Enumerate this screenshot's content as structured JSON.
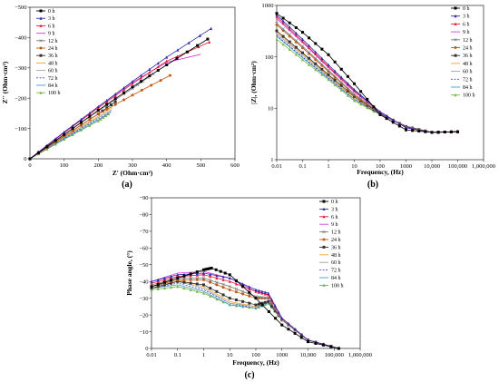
{
  "series_meta": [
    {
      "name": "0 h",
      "color": "#000000",
      "marker": "square",
      "dash": ""
    },
    {
      "name": "3 h",
      "color": "#2a2aa8",
      "marker": "triangle",
      "dash": ""
    },
    {
      "name": "6 h",
      "color": "#e8163c",
      "marker": "triangle",
      "dash": ""
    },
    {
      "name": "9 h",
      "color": "#d63be0",
      "marker": "none",
      "dash": ""
    },
    {
      "name": "12 h",
      "color": "#7a7a7a",
      "marker": "x",
      "dash": ""
    },
    {
      "name": "24 h",
      "color": "#c05a14",
      "marker": "circle",
      "dash": ""
    },
    {
      "name": "36 h",
      "color": "#333333",
      "marker": "square",
      "dash": ""
    },
    {
      "name": "48 h",
      "color": "#f0a030",
      "marker": "none",
      "dash": ""
    },
    {
      "name": "60 h",
      "color": "#9aa2b0",
      "marker": "none",
      "dash": ""
    },
    {
      "name": "72 h",
      "color": "#4a4aa0",
      "marker": "none",
      "dash": "2,1.5"
    },
    {
      "name": "84 h",
      "color": "#3aa0d8",
      "marker": "none",
      "dash": ""
    },
    {
      "name": "100 h",
      "color": "#7ab648",
      "marker": "triangle",
      "dash": ""
    }
  ],
  "chart_data": [
    {
      "type": "line",
      "panel_label": "(a)",
      "xlabel": "Z' (Ohm·cm²)",
      "ylabel": "Z'' (Ohm·cm²)",
      "xlim": [
        0,
        600
      ],
      "ylim": [
        0,
        -500
      ],
      "x_ticks": [
        "0",
        "100",
        "200",
        "300",
        "400",
        "500",
        "600"
      ],
      "y_ticks": [
        "0",
        "−100",
        "−200",
        "−300",
        "−400",
        "−500"
      ],
      "legend_position": "top-left",
      "series": [
        {
          "name": "0 h",
          "x": [
            0,
            100,
            200,
            300,
            400,
            520
          ],
          "y": [
            0,
            -80,
            -160,
            -237,
            -310,
            -395
          ]
        },
        {
          "name": "3 h",
          "x": [
            0,
            100,
            200,
            300,
            400,
            530
          ],
          "y": [
            0,
            -88,
            -172,
            -255,
            -335,
            -430
          ]
        },
        {
          "name": "6 h",
          "x": [
            0,
            100,
            200,
            300,
            400,
            525
          ],
          "y": [
            0,
            -86,
            -168,
            -248,
            -322,
            -385
          ]
        },
        {
          "name": "9 h",
          "x": [
            0,
            100,
            200,
            300,
            400,
            500
          ],
          "y": [
            0,
            -88,
            -172,
            -252,
            -318,
            -345
          ]
        },
        {
          "name": "12 h",
          "x": [
            0,
            100,
            200,
            300,
            360
          ],
          "y": [
            0,
            -80,
            -158,
            -232,
            -280
          ]
        },
        {
          "name": "24 h",
          "x": [
            0,
            100,
            200,
            300,
            410
          ],
          "y": [
            0,
            -75,
            -148,
            -210,
            -275
          ]
        },
        {
          "name": "36 h",
          "x": [
            0,
            100,
            200,
            250
          ],
          "y": [
            0,
            -75,
            -148,
            -188
          ]
        },
        {
          "name": "48 h",
          "x": [
            0,
            100,
            200,
            240
          ],
          "y": [
            0,
            -72,
            -140,
            -168
          ]
        },
        {
          "name": "60 h",
          "x": [
            0,
            100,
            200,
            240
          ],
          "y": [
            0,
            -70,
            -136,
            -162
          ]
        },
        {
          "name": "72 h",
          "x": [
            0,
            100,
            200,
            240
          ],
          "y": [
            0,
            -68,
            -132,
            -158
          ]
        },
        {
          "name": "84 h",
          "x": [
            0,
            100,
            200,
            235
          ],
          "y": [
            0,
            -66,
            -128,
            -152
          ]
        },
        {
          "name": "100 h",
          "x": [
            0,
            100,
            200,
            230
          ],
          "y": [
            0,
            -64,
            -125,
            -148
          ]
        }
      ]
    },
    {
      "type": "line",
      "panel_label": "(b)",
      "xlabel": "Frequency, (Hz)",
      "ylabel": "|Z|, (Ohm·cm²)",
      "x_scale": "log",
      "y_scale": "log",
      "xlim": [
        0.01,
        1000000
      ],
      "ylim": [
        1,
        1000
      ],
      "x_ticks": [
        "0.01",
        "0.1",
        "1",
        "10",
        "100",
        "1000",
        "10,000",
        "100,000",
        "1,000,000"
      ],
      "y_ticks": [
        "1",
        "10",
        "100",
        "1000"
      ],
      "legend_position": "top-right",
      "series": [
        {
          "name": "0 h",
          "x": [
            0.01,
            0.1,
            1,
            10,
            100,
            1000,
            10000,
            100000
          ],
          "y": [
            700,
            300,
            110,
            30,
            7.5,
            3.8,
            3.4,
            3.5
          ]
        },
        {
          "name": "3 h",
          "x": [
            0.01,
            0.1,
            1,
            10,
            100,
            1000,
            10000,
            100000
          ],
          "y": [
            650,
            220,
            70,
            23,
            8.5,
            4.2,
            3.4,
            3.5
          ]
        },
        {
          "name": "6 h",
          "x": [
            0.01,
            0.1,
            1,
            10,
            100,
            1000,
            10000,
            100000
          ],
          "y": [
            600,
            200,
            65,
            22,
            8.5,
            4.2,
            3.4,
            3.5
          ]
        },
        {
          "name": "9 h",
          "x": [
            0.01,
            0.1,
            1,
            10,
            100,
            1000,
            10000,
            100000
          ],
          "y": [
            550,
            190,
            62,
            21,
            8.3,
            4.2,
            3.4,
            3.5
          ]
        },
        {
          "name": "12 h",
          "x": [
            0.01,
            0.1,
            1,
            10,
            100,
            1000,
            10000,
            100000
          ],
          "y": [
            450,
            160,
            55,
            19,
            8.0,
            4.3,
            3.4,
            3.5
          ]
        },
        {
          "name": "24 h",
          "x": [
            0.01,
            0.1,
            1,
            10,
            100,
            1000,
            10000,
            100000
          ],
          "y": [
            420,
            150,
            52,
            18,
            8.0,
            4.3,
            3.4,
            3.5
          ]
        },
        {
          "name": "36 h",
          "x": [
            0.01,
            0.1,
            1,
            10,
            100,
            1000,
            10000,
            100000
          ],
          "y": [
            320,
            120,
            45,
            17,
            7.8,
            4.4,
            3.4,
            3.5
          ]
        },
        {
          "name": "48 h",
          "x": [
            0.01,
            0.1,
            1,
            10,
            100,
            1000,
            10000,
            100000
          ],
          "y": [
            300,
            115,
            43,
            16,
            7.8,
            4.4,
            3.4,
            3.5
          ]
        },
        {
          "name": "60 h",
          "x": [
            0.01,
            0.1,
            1,
            10,
            100,
            1000,
            10000,
            100000
          ],
          "y": [
            280,
            108,
            41,
            16,
            7.7,
            4.4,
            3.4,
            3.5
          ]
        },
        {
          "name": "72 h",
          "x": [
            0.01,
            0.1,
            1,
            10,
            100,
            1000,
            10000,
            100000
          ],
          "y": [
            260,
            100,
            39,
            15,
            7.6,
            4.5,
            3.4,
            3.5
          ]
        },
        {
          "name": "84 h",
          "x": [
            0.01,
            0.1,
            1,
            10,
            100,
            1000,
            10000,
            100000
          ],
          "y": [
            250,
            96,
            38,
            15,
            7.6,
            4.5,
            3.4,
            3.5
          ]
        },
        {
          "name": "100 h",
          "x": [
            0.01,
            0.1,
            1,
            10,
            100,
            1000,
            10000,
            100000
          ],
          "y": [
            220,
            88,
            36,
            14,
            7.5,
            4.5,
            3.4,
            3.5
          ]
        }
      ]
    },
    {
      "type": "line",
      "panel_label": "(c)",
      "xlabel": "Frequency, (Hz)",
      "ylabel": "Phase angle, (°)",
      "x_scale": "log",
      "xlim": [
        0.01,
        1000000
      ],
      "ylim": [
        0,
        -90
      ],
      "x_ticks": [
        "0.01",
        "0.1",
        "1",
        "10",
        "100",
        "1000",
        "10,000",
        "100,000",
        "1,000,000"
      ],
      "y_ticks": [
        "0",
        "−10",
        "−20",
        "−30",
        "−40",
        "−50",
        "−60",
        "−70",
        "−80",
        "−90"
      ],
      "legend_position": "top-right",
      "series": [
        {
          "name": "0 h",
          "x": [
            0.01,
            0.1,
            1,
            2,
            10,
            100,
            1000,
            10000,
            150000
          ],
          "y": [
            -37,
            -42,
            -47,
            -48,
            -44,
            -30,
            -14,
            -4,
            0
          ]
        },
        {
          "name": "3 h",
          "x": [
            0.01,
            0.1,
            1,
            10,
            100,
            300,
            1000,
            10000,
            150000
          ],
          "y": [
            -40,
            -44,
            -45,
            -42,
            -35,
            -33,
            -18,
            -5,
            0
          ]
        },
        {
          "name": "6 h",
          "x": [
            0.01,
            0.1,
            1,
            10,
            100,
            300,
            1000,
            10000,
            150000
          ],
          "y": [
            -39,
            -43,
            -44,
            -40,
            -34,
            -32,
            -18,
            -5,
            0
          ]
        },
        {
          "name": "9 h",
          "x": [
            0.01,
            0.1,
            1,
            10,
            100,
            300,
            1000,
            10000,
            150000
          ],
          "y": [
            -40,
            -45,
            -46,
            -42,
            -34,
            -32,
            -18,
            -5,
            0
          ]
        },
        {
          "name": "12 h",
          "x": [
            0.01,
            0.1,
            1,
            10,
            100,
            300,
            1000,
            10000,
            150000
          ],
          "y": [
            -38,
            -42,
            -42,
            -37,
            -31,
            -30,
            -17,
            -5,
            0
          ]
        },
        {
          "name": "24 h",
          "x": [
            0.01,
            0.1,
            1,
            10,
            100,
            300,
            1000,
            10000,
            150000
          ],
          "y": [
            -37,
            -41,
            -41,
            -35,
            -30,
            -30,
            -17,
            -5,
            0
          ]
        },
        {
          "name": "36 h",
          "x": [
            0.01,
            0.1,
            1,
            10,
            100,
            300,
            1000,
            10000,
            150000
          ],
          "y": [
            -36,
            -40,
            -38,
            -30,
            -26,
            -28,
            -17,
            -5,
            0
          ]
        },
        {
          "name": "48 h",
          "x": [
            0.01,
            0.1,
            1,
            10,
            100,
            300,
            1000,
            10000,
            150000
          ],
          "y": [
            -37,
            -41,
            -37,
            -28,
            -25,
            -28,
            -17,
            -5,
            0
          ]
        },
        {
          "name": "60 h",
          "x": [
            0.01,
            0.1,
            1,
            10,
            100,
            300,
            1000,
            10000,
            150000
          ],
          "y": [
            -37,
            -40,
            -36,
            -27,
            -25,
            -28,
            -17,
            -5,
            0
          ]
        },
        {
          "name": "72 h",
          "x": [
            0.01,
            0.1,
            1,
            10,
            100,
            300,
            1000,
            10000,
            150000
          ],
          "y": [
            -36,
            -39,
            -35,
            -27,
            -24,
            -28,
            -17,
            -5,
            0
          ]
        },
        {
          "name": "84 h",
          "x": [
            0.01,
            0.1,
            1,
            10,
            100,
            300,
            1000,
            10000,
            150000
          ],
          "y": [
            -36,
            -38,
            -34,
            -26,
            -24,
            -27,
            -17,
            -5,
            0
          ]
        },
        {
          "name": "100 h",
          "x": [
            0.01,
            0.1,
            1,
            10,
            100,
            300,
            1000,
            10000,
            150000
          ],
          "y": [
            -35,
            -37,
            -33,
            -26,
            -24,
            -27,
            -17,
            -5,
            0
          ]
        }
      ]
    }
  ]
}
